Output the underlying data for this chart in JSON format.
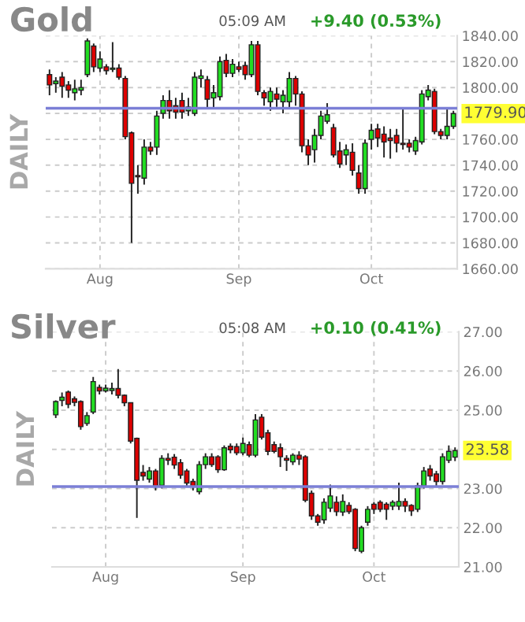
{
  "chart_data": [
    {
      "type": "candlestick",
      "title": "Gold",
      "ylabel": "DAILY",
      "annotations": [
        "05:09 AM",
        "+9.40 (0.53%)",
        "1779.90"
      ],
      "categories": [
        null,
        null,
        null,
        null,
        null,
        null,
        null,
        null,
        "Aug",
        null,
        null,
        null,
        null,
        null,
        null,
        null,
        null,
        null,
        null,
        null,
        null,
        null,
        null,
        null,
        null,
        null,
        null,
        null,
        null,
        null,
        "Sep",
        null,
        null,
        null,
        null,
        null,
        null,
        null,
        null,
        null,
        null,
        null,
        null,
        null,
        null,
        null,
        null,
        null,
        null,
        null,
        null,
        "Oct",
        null,
        null,
        null,
        null,
        null,
        null,
        null,
        null,
        null,
        null,
        null,
        null,
        null
      ],
      "ohlc": [
        [
          1810,
          1814,
          1794,
          1802
        ],
        [
          1803,
          1808,
          1796,
          1805
        ],
        [
          1808,
          1812,
          1792,
          1801
        ],
        [
          1802,
          1805,
          1792,
          1798
        ],
        [
          1796,
          1806,
          1790,
          1799
        ],
        [
          1798,
          1806,
          1794,
          1800
        ],
        [
          1810,
          1838,
          1808,
          1836
        ],
        [
          1832,
          1834,
          1812,
          1816
        ],
        [
          1815,
          1828,
          1812,
          1822
        ],
        [
          1816,
          1818,
          1810,
          1813
        ],
        [
          1814,
          1835,
          1812,
          1815
        ],
        [
          1815,
          1818,
          1806,
          1808
        ],
        [
          1807,
          1809,
          1760,
          1762
        ],
        [
          1765,
          1766,
          1680,
          1726
        ],
        [
          1732,
          1740,
          1718,
          1731
        ],
        [
          1730,
          1760,
          1725,
          1754
        ],
        [
          1754,
          1758,
          1748,
          1751
        ],
        [
          1754,
          1782,
          1748,
          1778
        ],
        [
          1780,
          1794,
          1776,
          1790
        ],
        [
          1790,
          1798,
          1776,
          1782
        ],
        [
          1786,
          1792,
          1776,
          1781
        ],
        [
          1790,
          1796,
          1776,
          1781
        ],
        [
          1782,
          1792,
          1778,
          1785
        ],
        [
          1780,
          1812,
          1778,
          1808
        ],
        [
          1807,
          1814,
          1800,
          1809
        ],
        [
          1806,
          1809,
          1784,
          1791
        ],
        [
          1792,
          1802,
          1784,
          1796
        ],
        [
          1793,
          1824,
          1790,
          1820
        ],
        [
          1821,
          1826,
          1808,
          1811
        ],
        [
          1811,
          1822,
          1808,
          1818
        ],
        [
          1816,
          1820,
          1812,
          1814
        ],
        [
          1817,
          1820,
          1806,
          1810
        ],
        [
          1810,
          1836,
          1808,
          1833
        ],
        [
          1833,
          1836,
          1794,
          1797
        ],
        [
          1796,
          1798,
          1786,
          1792
        ],
        [
          1789,
          1800,
          1782,
          1797
        ],
        [
          1795,
          1800,
          1785,
          1791
        ],
        [
          1789,
          1798,
          1780,
          1794
        ],
        [
          1789,
          1812,
          1784,
          1807
        ],
        [
          1807,
          1809,
          1786,
          1795
        ],
        [
          1795,
          1797,
          1750,
          1755
        ],
        [
          1755,
          1760,
          1740,
          1748
        ],
        [
          1752,
          1768,
          1742,
          1763
        ],
        [
          1763,
          1782,
          1760,
          1778
        ],
        [
          1774,
          1788,
          1772,
          1779
        ],
        [
          1769,
          1772,
          1746,
          1748
        ],
        [
          1751,
          1758,
          1738,
          1741
        ],
        [
          1748,
          1756,
          1740,
          1752
        ],
        [
          1750,
          1757,
          1732,
          1736
        ],
        [
          1734,
          1740,
          1718,
          1722
        ],
        [
          1722,
          1760,
          1718,
          1757
        ],
        [
          1760,
          1772,
          1752,
          1767
        ],
        [
          1768,
          1772,
          1754,
          1761
        ],
        [
          1764,
          1770,
          1746,
          1758
        ],
        [
          1761,
          1768,
          1745,
          1759
        ],
        [
          1763,
          1768,
          1750,
          1757
        ],
        [
          1757,
          1784,
          1752,
          1756
        ],
        [
          1757,
          1760,
          1750,
          1754
        ],
        [
          1751,
          1762,
          1748,
          1759
        ],
        [
          1758,
          1798,
          1756,
          1795
        ],
        [
          1793,
          1802,
          1790,
          1798
        ],
        [
          1797,
          1799,
          1764,
          1766
        ],
        [
          1766,
          1768,
          1760,
          1763
        ],
        [
          1763,
          1784,
          1760,
          1770
        ],
        [
          1770,
          1782,
          1768,
          1779.9
        ]
      ],
      "ylim": [
        1660,
        1840
      ],
      "yticks": [
        {
          "value": 1660,
          "label": "1660.00"
        },
        {
          "value": 1680,
          "label": "1680.00"
        },
        {
          "value": 1700,
          "label": "1700.00"
        },
        {
          "value": 1720,
          "label": "1720.00"
        },
        {
          "value": 1740,
          "label": "1740.00"
        },
        {
          "value": 1760,
          "label": "1760.00"
        },
        {
          "value": 1780,
          "label": null
        },
        {
          "value": 1800,
          "label": "1800.00"
        },
        {
          "value": 1820,
          "label": "1820.00"
        },
        {
          "value": 1840,
          "label": "1840.00"
        }
      ],
      "ref_lines": [
        {
          "axis": "y",
          "value": 1784,
          "color": "#7b7fd6"
        }
      ],
      "grid": true
    },
    {
      "type": "candlestick",
      "title": "Silver",
      "ylabel": "DAILY",
      "annotations": [
        "05:08 AM",
        "+0.10 (0.41%)",
        "23.58"
      ],
      "categories": [
        null,
        null,
        null,
        null,
        null,
        null,
        null,
        null,
        "Aug",
        null,
        null,
        null,
        null,
        null,
        null,
        null,
        null,
        null,
        null,
        null,
        null,
        null,
        null,
        null,
        null,
        null,
        null,
        null,
        null,
        null,
        "Sep",
        null,
        null,
        null,
        null,
        null,
        null,
        null,
        null,
        null,
        null,
        null,
        null,
        null,
        null,
        null,
        null,
        null,
        null,
        null,
        null,
        "Oct",
        null,
        null,
        null,
        null,
        null,
        null,
        null,
        null,
        null,
        null,
        null,
        null,
        null
      ],
      "ohlc": [
        [
          24.88,
          25.25,
          24.8,
          25.22
        ],
        [
          25.25,
          25.45,
          25.1,
          25.33
        ],
        [
          25.46,
          25.5,
          25.05,
          25.15
        ],
        [
          25.29,
          25.35,
          25.1,
          25.2
        ],
        [
          25.22,
          25.25,
          24.5,
          24.58
        ],
        [
          24.66,
          24.95,
          24.6,
          24.86
        ],
        [
          24.95,
          25.85,
          24.9,
          25.73
        ],
        [
          25.58,
          25.65,
          25.4,
          25.49
        ],
        [
          25.49,
          25.65,
          25.45,
          25.56
        ],
        [
          25.5,
          25.7,
          25.4,
          25.55
        ],
        [
          25.55,
          26.05,
          25.3,
          25.38
        ],
        [
          25.38,
          25.4,
          25.1,
          25.19
        ],
        [
          25.19,
          25.2,
          24.15,
          24.21
        ],
        [
          24.28,
          24.3,
          22.25,
          23.21
        ],
        [
          23.41,
          23.6,
          23.2,
          23.32
        ],
        [
          23.24,
          23.55,
          23.15,
          23.45
        ],
        [
          23.45,
          23.5,
          22.95,
          23.05
        ],
        [
          23.08,
          23.85,
          23.0,
          23.77
        ],
        [
          23.77,
          23.9,
          23.6,
          23.72
        ],
        [
          23.8,
          23.88,
          23.5,
          23.6
        ],
        [
          23.66,
          23.75,
          23.25,
          23.34
        ],
        [
          23.45,
          23.5,
          23.05,
          23.14
        ],
        [
          23.18,
          23.25,
          22.95,
          23.05
        ],
        [
          22.92,
          23.7,
          22.85,
          23.61
        ],
        [
          23.61,
          23.9,
          23.5,
          23.81
        ],
        [
          23.81,
          23.9,
          23.55,
          23.61
        ],
        [
          23.81,
          23.85,
          23.4,
          23.48
        ],
        [
          23.48,
          24.1,
          23.45,
          24.04
        ],
        [
          24.08,
          24.15,
          23.9,
          23.99
        ],
        [
          24.07,
          24.15,
          23.85,
          23.91
        ],
        [
          23.91,
          24.3,
          23.85,
          24.15
        ],
        [
          24.12,
          24.2,
          23.8,
          23.85
        ],
        [
          23.85,
          24.9,
          23.8,
          24.75
        ],
        [
          24.82,
          24.9,
          24.25,
          24.31
        ],
        [
          24.42,
          24.5,
          23.85,
          23.95
        ],
        [
          24.12,
          24.2,
          23.9,
          23.95
        ],
        [
          24.04,
          24.15,
          23.55,
          23.81
        ],
        [
          23.77,
          23.85,
          23.45,
          23.72
        ],
        [
          23.68,
          23.9,
          23.6,
          23.85
        ],
        [
          23.85,
          23.95,
          23.6,
          23.75
        ],
        [
          23.81,
          23.85,
          22.65,
          22.7
        ],
        [
          22.88,
          22.95,
          22.2,
          22.3
        ],
        [
          22.3,
          22.35,
          22.05,
          22.14
        ],
        [
          22.2,
          22.75,
          22.1,
          22.65
        ],
        [
          22.5,
          23.1,
          22.4,
          22.81
        ],
        [
          22.65,
          22.8,
          22.3,
          22.41
        ],
        [
          22.4,
          22.85,
          22.3,
          22.67
        ],
        [
          22.57,
          22.65,
          22.35,
          22.41
        ],
        [
          22.47,
          22.5,
          21.4,
          21.47
        ],
        [
          21.4,
          22.05,
          21.35,
          22.0
        ],
        [
          22.14,
          22.55,
          22.05,
          22.47
        ],
        [
          22.6,
          22.65,
          22.35,
          22.47
        ],
        [
          22.65,
          22.7,
          22.4,
          22.47
        ],
        [
          22.6,
          22.65,
          22.2,
          22.47
        ],
        [
          22.55,
          22.7,
          22.45,
          22.65
        ],
        [
          22.55,
          23.15,
          22.45,
          22.67
        ],
        [
          22.67,
          22.75,
          22.4,
          22.55
        ],
        [
          22.57,
          22.6,
          22.3,
          22.43
        ],
        [
          22.47,
          23.15,
          22.4,
          23.07
        ],
        [
          23.07,
          23.55,
          23.0,
          23.45
        ],
        [
          23.5,
          23.6,
          23.2,
          23.32
        ],
        [
          23.37,
          23.45,
          23.05,
          23.18
        ],
        [
          23.18,
          23.9,
          23.1,
          23.81
        ],
        [
          23.72,
          24.1,
          23.65,
          23.95
        ],
        [
          23.8,
          24.05,
          23.7,
          23.97
        ]
      ],
      "ylim": [
        21,
        27
      ],
      "yticks": [
        {
          "value": 21,
          "label": "21.00"
        },
        {
          "value": 22,
          "label": "22.00"
        },
        {
          "value": 23,
          "label": "23.00"
        },
        {
          "value": 24,
          "label": null
        },
        {
          "value": 25,
          "label": "25.00"
        },
        {
          "value": 26,
          "label": "26.00"
        },
        {
          "value": 27,
          "label": "27.00"
        }
      ],
      "ref_lines": [
        {
          "axis": "y",
          "value": 23.05,
          "color": "#7b7fd6"
        }
      ],
      "grid": true
    }
  ]
}
